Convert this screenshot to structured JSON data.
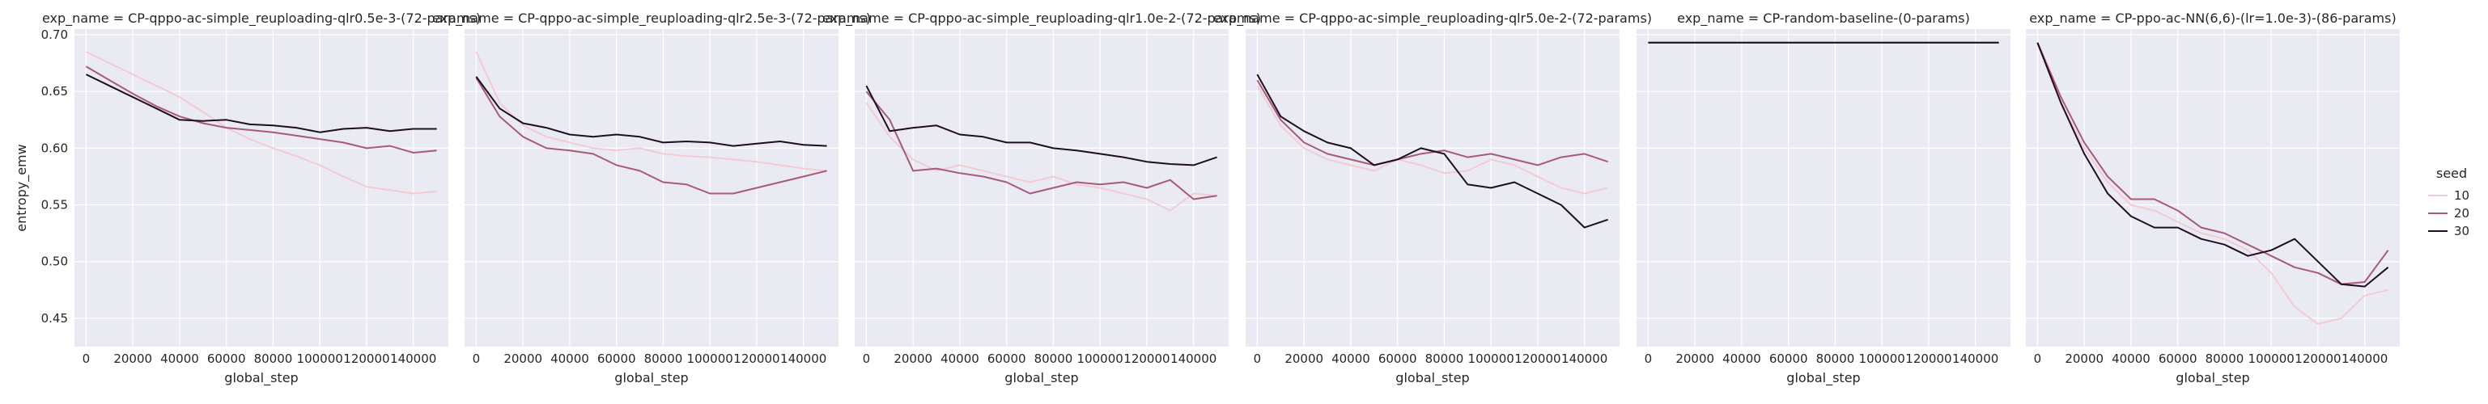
{
  "figure": {
    "ylabel": "entropy_emw",
    "xlabel": "global_step",
    "legend_title": "seed",
    "x_ticks": [
      "0",
      "20000",
      "40000",
      "60000",
      "80000",
      "100000",
      "120000",
      "140000"
    ],
    "y_ticks": [
      "0.45",
      "0.50",
      "0.55",
      "0.60",
      "0.65",
      "0.70"
    ]
  },
  "legend": [
    {
      "label": "10",
      "color": "#f3cbd3"
    },
    {
      "label": "20",
      "color": "#a9597b"
    },
    {
      "label": "30",
      "color": "#1e0d24"
    }
  ],
  "chart_data": [
    {
      "type": "line",
      "title": "exp_name = CP-qppo-ac-simple_reuploading-qlr0.5e-3-(72-params)",
      "xlabel": "global_step",
      "ylabel": "entropy_emw",
      "xlim": [
        -5000,
        155000
      ],
      "ylim": [
        0.425,
        0.705
      ],
      "x": [
        0,
        10000,
        20000,
        30000,
        40000,
        50000,
        60000,
        70000,
        80000,
        90000,
        100000,
        110000,
        120000,
        130000,
        140000,
        150000
      ],
      "series": [
        {
          "name": "10",
          "values": [
            0.685,
            0.675,
            0.665,
            0.655,
            0.645,
            0.632,
            0.618,
            0.608,
            0.6,
            0.593,
            0.585,
            0.575,
            0.566,
            0.563,
            0.56,
            0.562
          ]
        },
        {
          "name": "20",
          "values": [
            0.672,
            0.66,
            0.648,
            0.637,
            0.628,
            0.622,
            0.618,
            0.616,
            0.614,
            0.611,
            0.608,
            0.605,
            0.6,
            0.602,
            0.596,
            0.598
          ]
        },
        {
          "name": "30",
          "values": [
            0.665,
            0.655,
            0.645,
            0.635,
            0.625,
            0.624,
            0.625,
            0.621,
            0.62,
            0.618,
            0.614,
            0.617,
            0.618,
            0.615,
            0.617,
            0.617
          ]
        }
      ]
    },
    {
      "type": "line",
      "title": "exp_name = CP-qppo-ac-simple_reuploading-qlr2.5e-3-(72-params)",
      "xlabel": "global_step",
      "ylabel": "entropy_emw",
      "xlim": [
        -5000,
        155000
      ],
      "ylim": [
        0.425,
        0.705
      ],
      "x": [
        0,
        10000,
        20000,
        30000,
        40000,
        50000,
        60000,
        70000,
        80000,
        90000,
        100000,
        110000,
        120000,
        130000,
        140000,
        150000
      ],
      "series": [
        {
          "name": "10",
          "values": [
            0.685,
            0.64,
            0.62,
            0.61,
            0.605,
            0.6,
            0.598,
            0.6,
            0.595,
            0.593,
            0.592,
            0.59,
            0.588,
            0.585,
            0.582,
            0.58
          ]
        },
        {
          "name": "20",
          "values": [
            0.662,
            0.628,
            0.61,
            0.6,
            0.598,
            0.595,
            0.585,
            0.58,
            0.57,
            0.568,
            0.56,
            0.56,
            0.565,
            0.57,
            0.575,
            0.58
          ]
        },
        {
          "name": "30",
          "values": [
            0.663,
            0.635,
            0.622,
            0.618,
            0.612,
            0.61,
            0.612,
            0.61,
            0.605,
            0.606,
            0.605,
            0.602,
            0.604,
            0.606,
            0.603,
            0.602
          ]
        }
      ]
    },
    {
      "type": "line",
      "title": "exp_name = CP-qppo-ac-simple_reuploading-qlr1.0e-2-(72-params)",
      "xlabel": "global_step",
      "ylabel": "entropy_emw",
      "xlim": [
        -5000,
        155000
      ],
      "ylim": [
        0.425,
        0.705
      ],
      "x": [
        0,
        10000,
        20000,
        30000,
        40000,
        50000,
        60000,
        70000,
        80000,
        90000,
        100000,
        110000,
        120000,
        130000,
        140000,
        150000
      ],
      "series": [
        {
          "name": "10",
          "values": [
            0.64,
            0.61,
            0.59,
            0.58,
            0.585,
            0.58,
            0.575,
            0.57,
            0.575,
            0.568,
            0.565,
            0.56,
            0.555,
            0.545,
            0.56,
            0.558
          ]
        },
        {
          "name": "20",
          "values": [
            0.65,
            0.625,
            0.58,
            0.582,
            0.578,
            0.575,
            0.57,
            0.56,
            0.565,
            0.57,
            0.568,
            0.57,
            0.565,
            0.572,
            0.555,
            0.558
          ]
        },
        {
          "name": "30",
          "values": [
            0.655,
            0.615,
            0.618,
            0.62,
            0.612,
            0.61,
            0.605,
            0.605,
            0.6,
            0.598,
            0.595,
            0.592,
            0.588,
            0.586,
            0.585,
            0.592
          ]
        }
      ]
    },
    {
      "type": "line",
      "title": "exp_name = CP-qppo-ac-simple_reuploading-qlr5.0e-2-(72-params)",
      "xlabel": "global_step",
      "ylabel": "entropy_emw",
      "xlim": [
        -5000,
        155000
      ],
      "ylim": [
        0.425,
        0.705
      ],
      "x": [
        0,
        10000,
        20000,
        30000,
        40000,
        50000,
        60000,
        70000,
        80000,
        90000,
        100000,
        110000,
        120000,
        130000,
        140000,
        150000
      ],
      "series": [
        {
          "name": "10",
          "values": [
            0.655,
            0.62,
            0.6,
            0.59,
            0.585,
            0.58,
            0.59,
            0.585,
            0.578,
            0.58,
            0.59,
            0.585,
            0.575,
            0.565,
            0.56,
            0.565
          ]
        },
        {
          "name": "20",
          "values": [
            0.66,
            0.625,
            0.605,
            0.595,
            0.59,
            0.585,
            0.59,
            0.595,
            0.598,
            0.592,
            0.595,
            0.59,
            0.585,
            0.592,
            0.595,
            0.588
          ]
        },
        {
          "name": "30",
          "values": [
            0.665,
            0.628,
            0.615,
            0.605,
            0.6,
            0.585,
            0.59,
            0.6,
            0.595,
            0.568,
            0.565,
            0.57,
            0.56,
            0.55,
            0.53,
            0.537
          ]
        }
      ]
    },
    {
      "type": "line",
      "title": "exp_name = CP-random-baseline-(0-params)",
      "xlabel": "global_step",
      "ylabel": "entropy_emw",
      "xlim": [
        -5000,
        155000
      ],
      "ylim": [
        0.425,
        0.705
      ],
      "x": [
        0,
        150000
      ],
      "series": [
        {
          "name": "10",
          "values": [
            0.693,
            0.693
          ]
        },
        {
          "name": "20",
          "values": [
            0.693,
            0.693
          ]
        },
        {
          "name": "30",
          "values": [
            0.693,
            0.693
          ]
        }
      ]
    },
    {
      "type": "line",
      "title": "exp_name = CP-ppo-ac-NN(6,6)-(lr=1.0e-3)-(86-params)",
      "xlabel": "global_step",
      "ylabel": "entropy_emw",
      "xlim": [
        -5000,
        155000
      ],
      "ylim": [
        0.425,
        0.705
      ],
      "x": [
        0,
        10000,
        20000,
        30000,
        40000,
        50000,
        60000,
        70000,
        80000,
        90000,
        100000,
        110000,
        120000,
        130000,
        140000,
        150000
      ],
      "series": [
        {
          "name": "10",
          "values": [
            0.692,
            0.64,
            0.6,
            0.57,
            0.55,
            0.545,
            0.535,
            0.525,
            0.52,
            0.51,
            0.49,
            0.46,
            0.445,
            0.45,
            0.47,
            0.475
          ]
        },
        {
          "name": "20",
          "values": [
            0.693,
            0.645,
            0.605,
            0.575,
            0.555,
            0.555,
            0.545,
            0.53,
            0.525,
            0.515,
            0.505,
            0.495,
            0.49,
            0.48,
            0.482,
            0.51
          ]
        },
        {
          "name": "30",
          "values": [
            0.693,
            0.64,
            0.595,
            0.56,
            0.54,
            0.53,
            0.53,
            0.52,
            0.515,
            0.505,
            0.51,
            0.52,
            0.5,
            0.48,
            0.478,
            0.495
          ]
        }
      ]
    }
  ]
}
